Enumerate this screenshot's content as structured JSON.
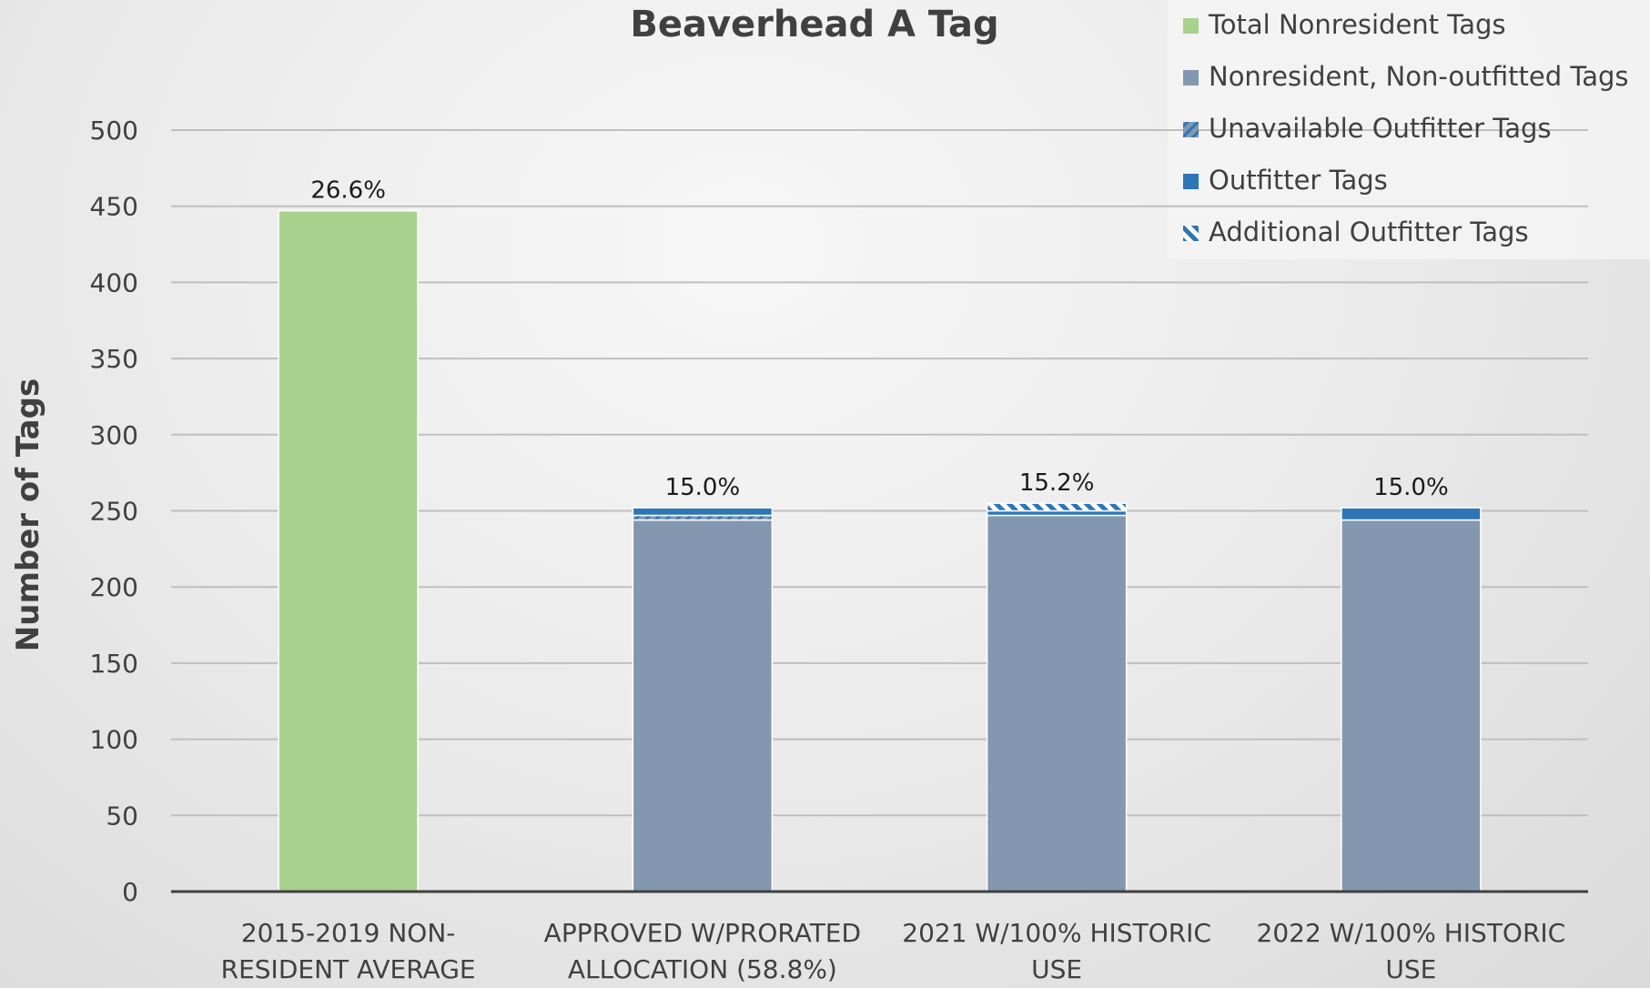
{
  "chart_data": {
    "type": "bar",
    "title": "Beaverhead A Tag",
    "ylabel": "Number of Tags",
    "xlabel": "",
    "ylim": [
      0,
      500
    ],
    "yticks": [
      0,
      50,
      100,
      150,
      200,
      250,
      300,
      350,
      400,
      450,
      500
    ],
    "grid": true,
    "legend_position": "top-right",
    "categories": [
      [
        "2015-2019 NON-",
        "RESIDENT AVERAGE"
      ],
      [
        "APPROVED W/PRORATED",
        "ALLOCATION (58.8%)"
      ],
      [
        "2021 W/100% HISTORIC",
        "USE"
      ],
      [
        "2022 W/100% HISTORIC",
        "USE"
      ]
    ],
    "series": [
      {
        "name": "Total Nonresident Tags",
        "color": "#a9d18e",
        "pattern": "solid",
        "values": [
          447,
          0,
          0,
          0
        ]
      },
      {
        "name": "Nonresident, Non-outfitted Tags",
        "color": "#8497b0",
        "pattern": "solid",
        "values": [
          0,
          244,
          247,
          244
        ]
      },
      {
        "name": "Unavailable Outfitter Tags",
        "color": "#8497b0",
        "pattern": "hatch-blue",
        "values": [
          0,
          3,
          0,
          0
        ]
      },
      {
        "name": "Outfitter Tags",
        "color": "#2e75b6",
        "pattern": "solid",
        "values": [
          0,
          5,
          3,
          8
        ]
      },
      {
        "name": "Additional Outfitter Tags",
        "color": "#2e75b6",
        "pattern": "hatch",
        "values": [
          0,
          0,
          5,
          0
        ]
      }
    ],
    "data_labels": [
      "26.6%",
      "15.0%",
      "15.2%",
      "15.0%"
    ]
  }
}
